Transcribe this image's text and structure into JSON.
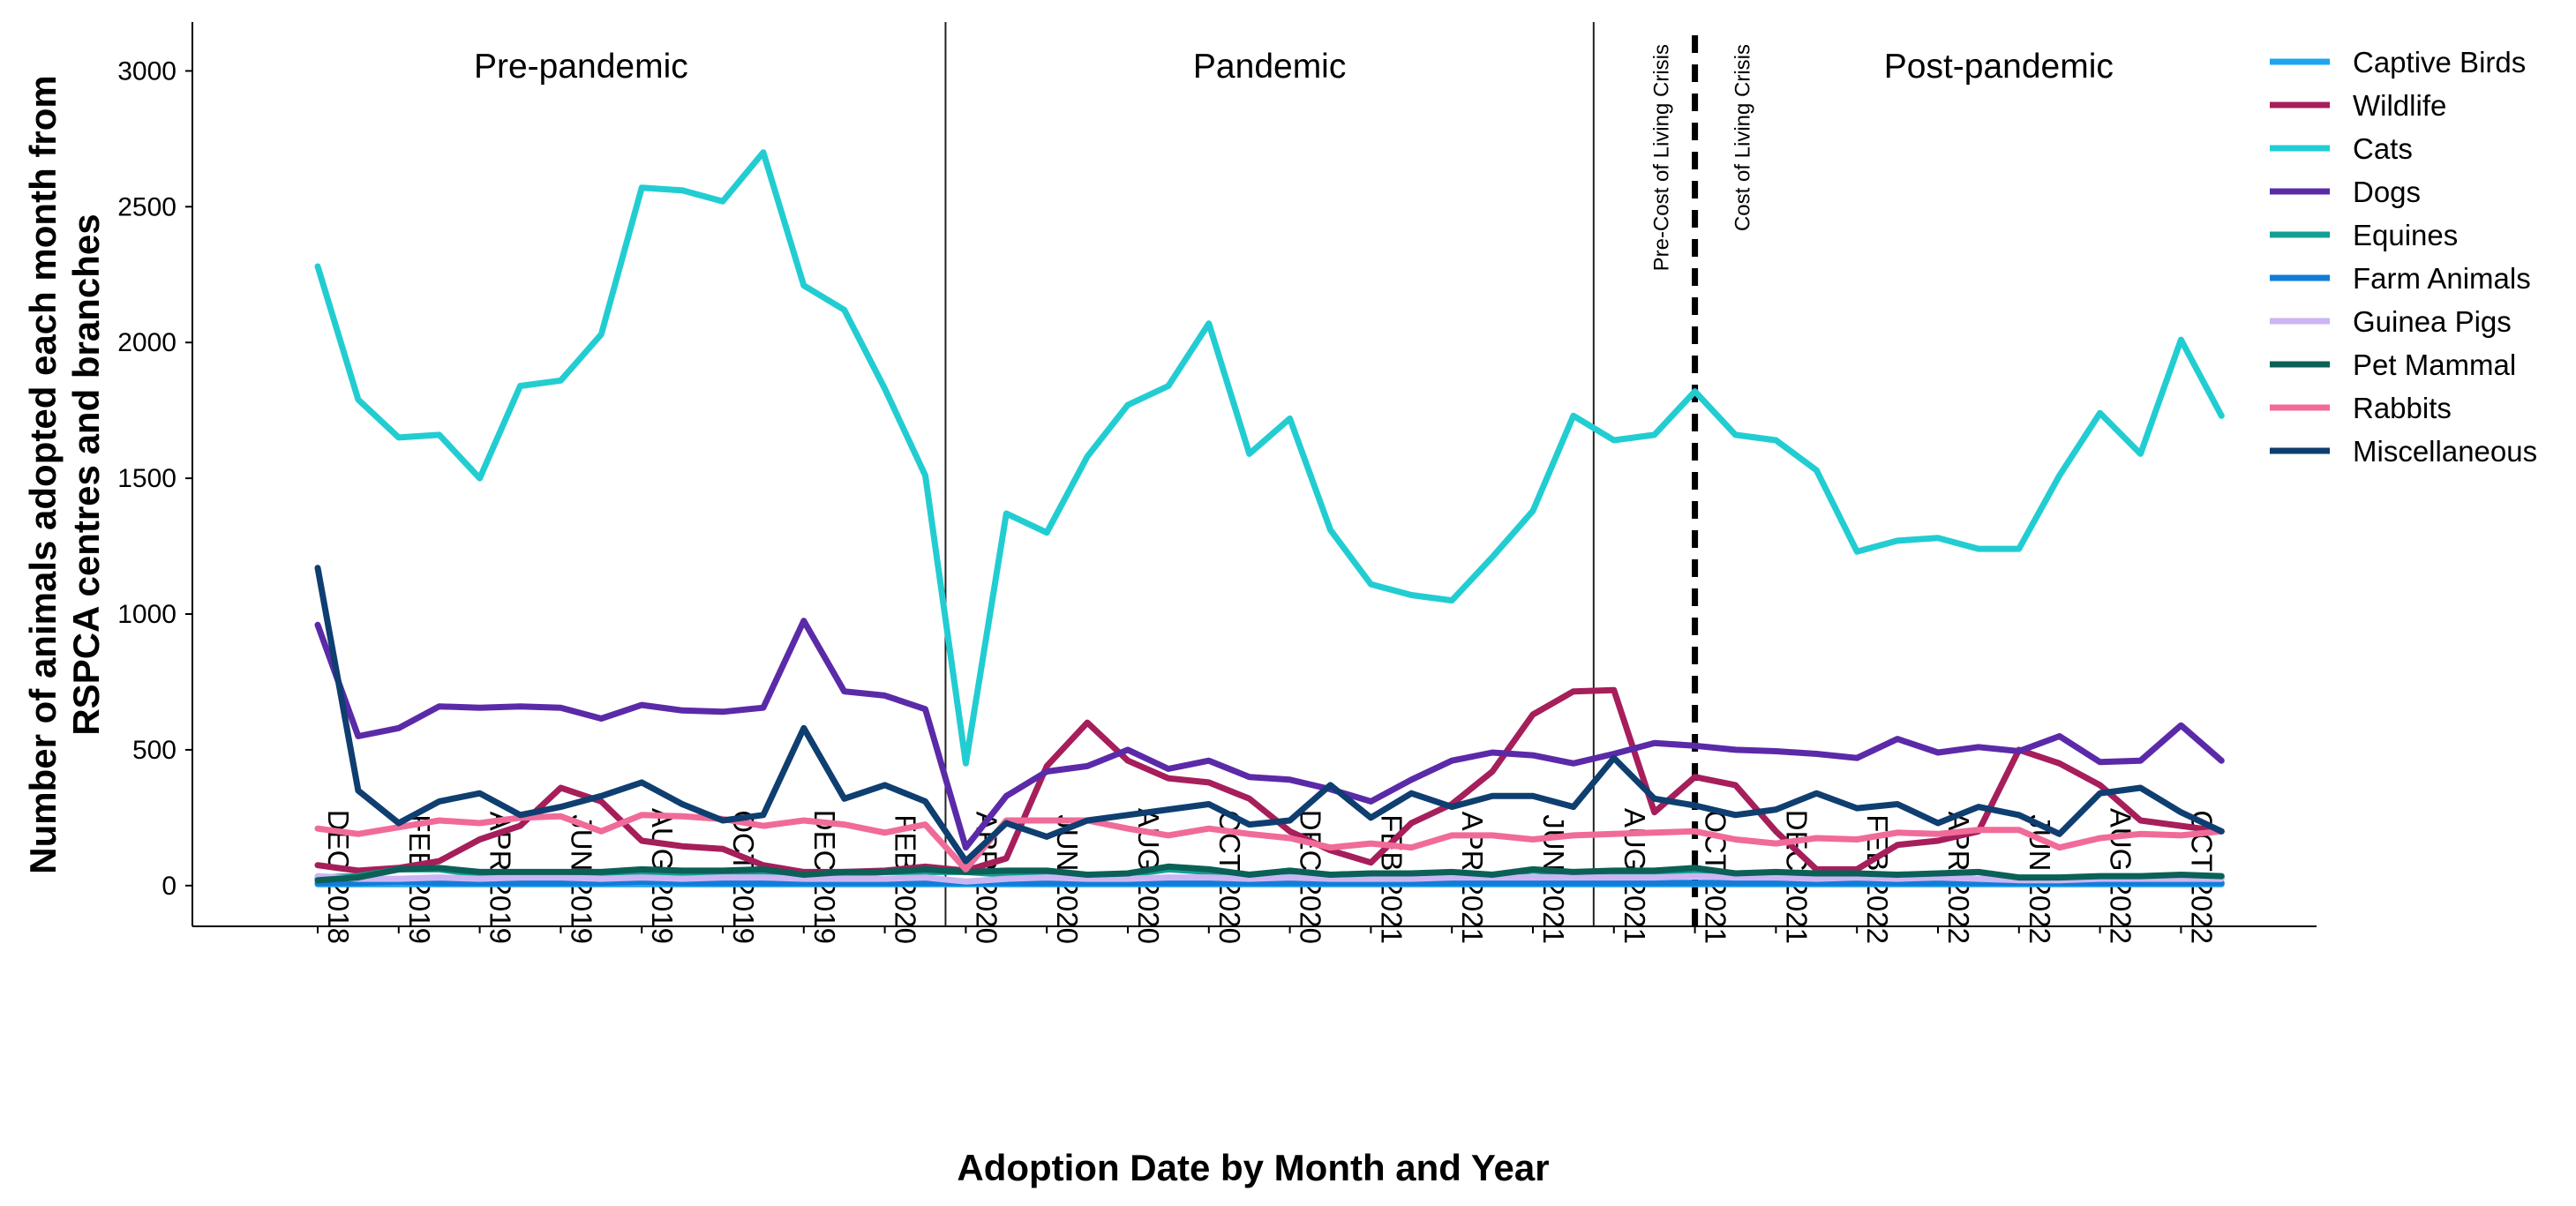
{
  "chart_data": {
    "type": "line",
    "xlabel": "Adoption Date by Month and Year",
    "ylabel_line1": "Number of animals adopted each month from",
    "ylabel_line2": "RSPCA centres and branches",
    "ylim": [
      -150,
      3180
    ],
    "yticks": [
      0,
      500,
      1000,
      1500,
      2000,
      2500,
      3000
    ],
    "x_tick_labels": [
      "DEC 2018",
      "FEB 2019",
      "APR 2019",
      "JUN 2019",
      "AUG 2019",
      "OCT 2019",
      "DEC 2019",
      "FEB 2020",
      "APR 2020",
      "JUN 2020",
      "AUG 2020",
      "OCT 2020",
      "DEC 2020",
      "FEB 2021",
      "APR 2021",
      "JUN 2021",
      "AUG 2021",
      "OCT 2021",
      "DEC 2021",
      "FEB 2022",
      "APR 2022",
      "JUN 2022",
      "AUG 2022",
      "OCT 2022"
    ],
    "x_tick_months": [
      0,
      2,
      4,
      6,
      8,
      10,
      12,
      14,
      16,
      18,
      20,
      22,
      24,
      26,
      28,
      30,
      32,
      34,
      36,
      38,
      40,
      42,
      44,
      46
    ],
    "period_dividers": [
      15.5,
      31.5
    ],
    "crisis_divider": 34,
    "periods": [
      {
        "label": "Pre-pandemic",
        "center": 6.5
      },
      {
        "label": "Pandemic",
        "center": 23.5
      },
      {
        "label": "Post-pandemic",
        "center": 41.5
      }
    ],
    "crisis_labels": {
      "before": "Pre-Cost of Living Crisis",
      "after": "Cost of Living Crisis"
    },
    "series": [
      {
        "name": "Captive Birds",
        "color": "#1fa5ef",
        "values": [
          5,
          5,
          5,
          5,
          5,
          5,
          5,
          5,
          5,
          5,
          5,
          5,
          5,
          5,
          5,
          5,
          5,
          5,
          5,
          5,
          5,
          5,
          5,
          5,
          5,
          5,
          5,
          5,
          5,
          5,
          5,
          5,
          5,
          5,
          5,
          5,
          5,
          5,
          5,
          5,
          5,
          5,
          5,
          5,
          5,
          5,
          5,
          5
        ]
      },
      {
        "name": "Wildlife",
        "color": "#a61e5a",
        "values": [
          75,
          55,
          65,
          90,
          170,
          220,
          360,
          310,
          165,
          145,
          135,
          75,
          50,
          50,
          55,
          70,
          55,
          100,
          440,
          600,
          460,
          395,
          380,
          320,
          200,
          130,
          85,
          230,
          300,
          420,
          630,
          715,
          720,
          270,
          400,
          370,
          200,
          60,
          60,
          150,
          165,
          200,
          500,
          450,
          370,
          240,
          220,
          200
        ]
      },
      {
        "name": "Cats",
        "color": "#22cdd2",
        "values": [
          2280,
          1790,
          1650,
          1660,
          1500,
          1840,
          1860,
          2030,
          2570,
          2560,
          2520,
          2700,
          2210,
          2120,
          1830,
          1510,
          450,
          1370,
          1300,
          1580,
          1770,
          1840,
          2070,
          1590,
          1720,
          1310,
          1110,
          1070,
          1050,
          1210,
          1380,
          1730,
          1640,
          1660,
          1820,
          1660,
          1640,
          1530,
          1230,
          1270,
          1280,
          1240,
          1240,
          1510,
          1740,
          1590,
          2010,
          1730
        ]
      },
      {
        "name": "Dogs",
        "color": "#5b2aa8",
        "values": [
          960,
          550,
          580,
          660,
          655,
          660,
          655,
          615,
          665,
          645,
          640,
          655,
          975,
          715,
          700,
          650,
          140,
          330,
          420,
          440,
          500,
          430,
          460,
          400,
          390,
          355,
          310,
          390,
          460,
          490,
          480,
          450,
          485,
          525,
          515,
          500,
          495,
          485,
          470,
          540,
          490,
          510,
          495,
          550,
          455,
          460,
          590,
          460
        ]
      },
      {
        "name": "Equines",
        "color": "#11a093",
        "values": [
          30,
          35,
          60,
          60,
          40,
          40,
          40,
          40,
          50,
          45,
          50,
          40,
          30,
          40,
          50,
          50,
          50,
          40,
          45,
          35,
          40,
          60,
          50,
          40,
          50,
          40,
          40,
          40,
          45,
          40,
          55,
          45,
          40,
          40,
          55,
          45,
          40,
          35,
          40,
          35,
          40,
          50,
          25,
          25,
          30,
          30,
          35,
          30
        ]
      },
      {
        "name": "Farm Animals",
        "color": "#137bd8",
        "values": [
          10,
          10,
          15,
          10,
          10,
          10,
          10,
          10,
          15,
          10,
          10,
          10,
          10,
          10,
          10,
          10,
          10,
          10,
          10,
          10,
          10,
          10,
          10,
          10,
          10,
          10,
          10,
          10,
          10,
          10,
          10,
          10,
          10,
          10,
          10,
          10,
          10,
          10,
          10,
          10,
          10,
          10,
          10,
          10,
          10,
          10,
          10,
          10
        ]
      },
      {
        "name": "Guinea Pigs",
        "color": "#cbb5f4",
        "values": [
          35,
          25,
          25,
          30,
          25,
          30,
          30,
          25,
          30,
          25,
          30,
          30,
          25,
          25,
          25,
          30,
          15,
          25,
          30,
          25,
          25,
          30,
          30,
          25,
          30,
          25,
          25,
          25,
          30,
          30,
          30,
          30,
          30,
          30,
          35,
          30,
          30,
          25,
          30,
          25,
          30,
          25,
          20,
          20,
          25,
          25,
          25,
          25
        ]
      },
      {
        "name": "Pet Mammal",
        "color": "#0b6157",
        "values": [
          20,
          30,
          60,
          65,
          50,
          50,
          50,
          50,
          60,
          55,
          55,
          60,
          40,
          50,
          50,
          60,
          50,
          55,
          55,
          40,
          45,
          70,
          60,
          40,
          55,
          40,
          45,
          45,
          50,
          40,
          60,
          50,
          55,
          55,
          65,
          45,
          50,
          45,
          45,
          40,
          45,
          50,
          30,
          30,
          35,
          35,
          40,
          35
        ]
      },
      {
        "name": "Rabbits",
        "color": "#f06b99",
        "values": [
          210,
          190,
          215,
          240,
          230,
          250,
          255,
          200,
          260,
          255,
          245,
          220,
          240,
          225,
          195,
          225,
          60,
          240,
          240,
          240,
          210,
          185,
          210,
          190,
          175,
          140,
          155,
          140,
          185,
          185,
          170,
          185,
          190,
          195,
          200,
          170,
          155,
          175,
          170,
          195,
          190,
          205,
          205,
          140,
          175,
          190,
          185,
          200
        ]
      },
      {
        "name": "Miscellaneous",
        "color": "#0f3e70",
        "values": [
          1170,
          350,
          230,
          310,
          340,
          260,
          290,
          330,
          380,
          300,
          240,
          260,
          580,
          320,
          370,
          310,
          90,
          230,
          180,
          240,
          260,
          280,
          300,
          225,
          240,
          370,
          250,
          340,
          290,
          330,
          330,
          290,
          470,
          320,
          295,
          260,
          280,
          340,
          285,
          300,
          230,
          290,
          260,
          190,
          340,
          360,
          270,
          200
        ]
      }
    ]
  }
}
